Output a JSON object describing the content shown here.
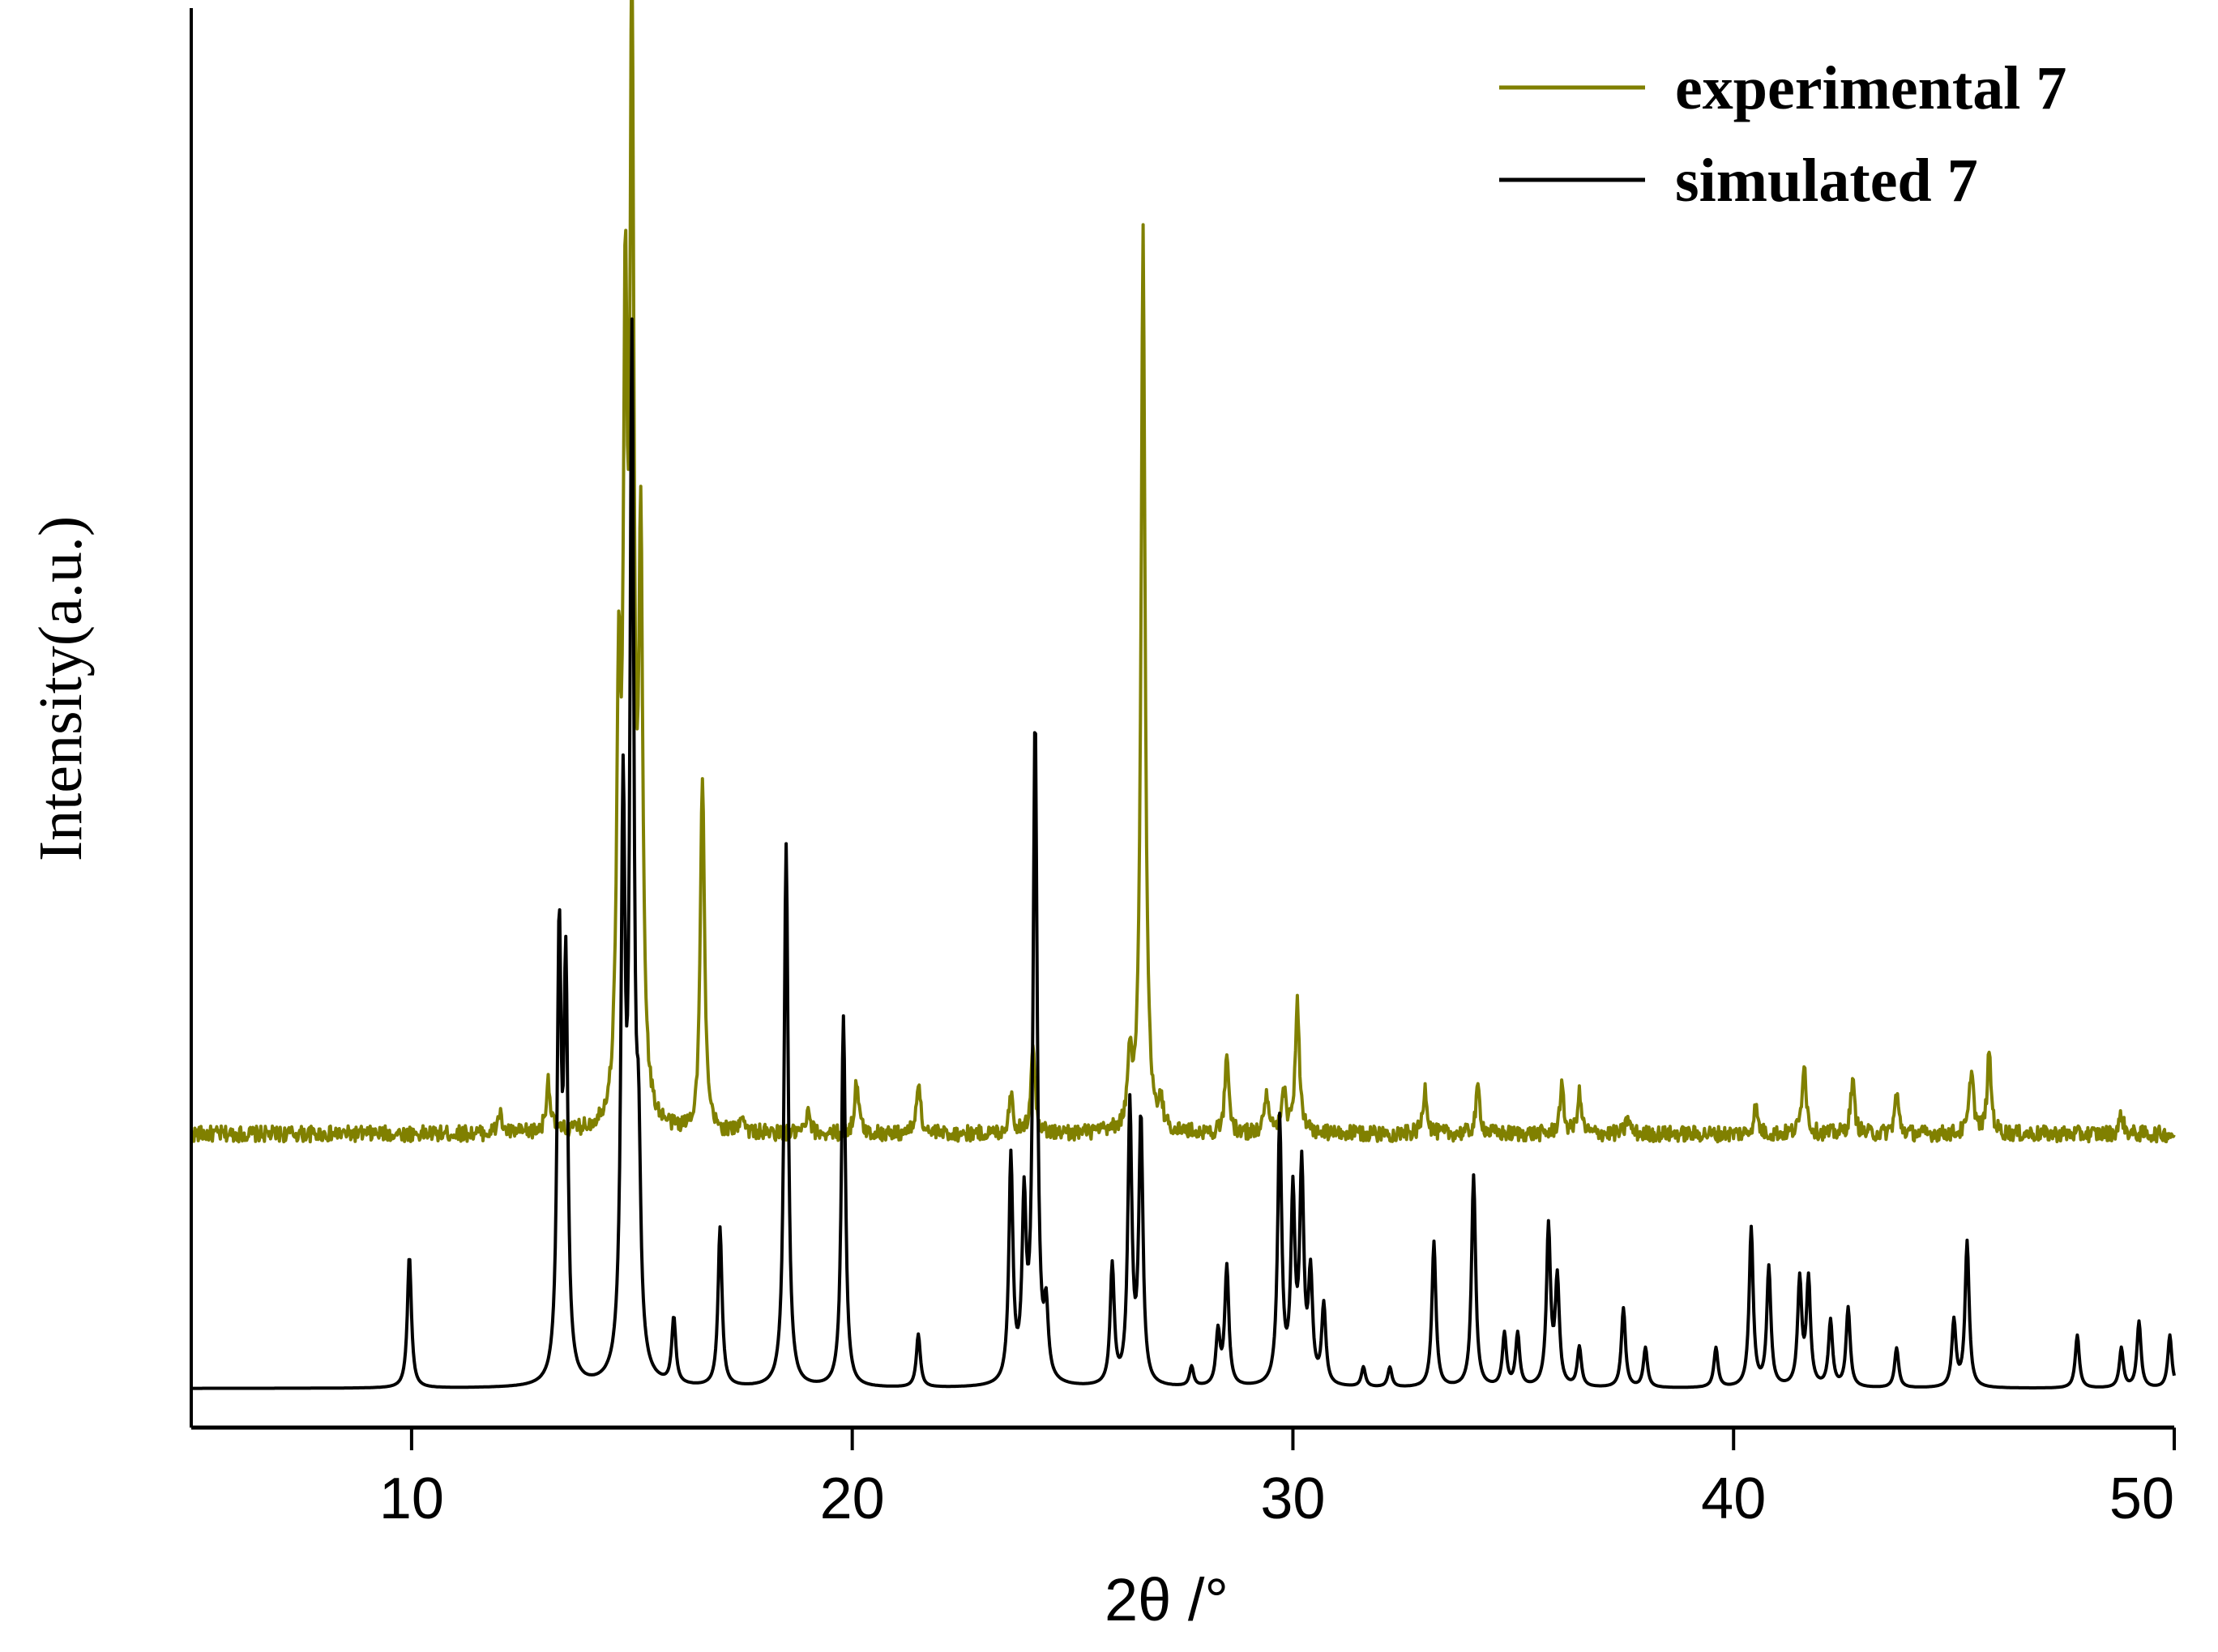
{
  "chart_data": {
    "type": "line",
    "title": "",
    "xlabel": "2θ /°",
    "ylabel": "Intensity(a.u.)",
    "xlim": [
      5,
      50
    ],
    "x_ticks": [
      10,
      20,
      30,
      40,
      50
    ],
    "y_ticks_shown": false,
    "grid": false,
    "legend_position": "top-right",
    "series": [
      {
        "name": "experimental 7",
        "color": "#808000",
        "baseline": 0.205,
        "noise": 0.006,
        "peaks": [
          [
            12.0,
            0.015
          ],
          [
            13.1,
            0.04
          ],
          [
            14.7,
            0.3
          ],
          [
            14.85,
            0.55
          ],
          [
            15.0,
            0.8
          ],
          [
            15.2,
            0.42
          ],
          [
            16.6,
            0.27
          ],
          [
            17.5,
            0.015
          ],
          [
            19.0,
            0.015
          ],
          [
            20.1,
            0.04
          ],
          [
            21.5,
            0.04
          ],
          [
            23.6,
            0.03
          ],
          [
            24.1,
            0.07
          ],
          [
            26.3,
            0.05
          ],
          [
            26.6,
            0.68
          ],
          [
            27.0,
            0.02
          ],
          [
            28.5,
            0.055
          ],
          [
            29.4,
            0.03
          ],
          [
            29.8,
            0.03
          ],
          [
            30.1,
            0.1
          ],
          [
            33.0,
            0.035
          ],
          [
            34.2,
            0.035
          ],
          [
            36.1,
            0.035
          ],
          [
            36.5,
            0.03
          ],
          [
            37.6,
            0.012
          ],
          [
            40.5,
            0.02
          ],
          [
            41.6,
            0.055
          ],
          [
            42.7,
            0.04
          ],
          [
            43.7,
            0.03
          ],
          [
            45.4,
            0.05
          ],
          [
            45.8,
            0.06
          ],
          [
            48.8,
            0.015
          ]
        ]
      },
      {
        "name": "simulated 7",
        "color": "#000000",
        "baseline": 0.013,
        "noise": 0.0,
        "peaks": [
          [
            9.95,
            0.1
          ],
          [
            13.35,
            0.33
          ],
          [
            13.5,
            0.3
          ],
          [
            14.8,
            0.42
          ],
          [
            15.0,
            0.76
          ],
          [
            15.15,
            0.14
          ],
          [
            15.95,
            0.05
          ],
          [
            17.0,
            0.12
          ],
          [
            18.5,
            0.41
          ],
          [
            19.8,
            0.28
          ],
          [
            21.5,
            0.04
          ],
          [
            23.6,
            0.17
          ],
          [
            23.9,
            0.13
          ],
          [
            24.15,
            0.5
          ],
          [
            24.4,
            0.05
          ],
          [
            25.9,
            0.09
          ],
          [
            26.3,
            0.21
          ],
          [
            26.55,
            0.2
          ],
          [
            27.7,
            0.015
          ],
          [
            28.3,
            0.04
          ],
          [
            28.5,
            0.09
          ],
          [
            29.7,
            0.2
          ],
          [
            30.0,
            0.14
          ],
          [
            30.2,
            0.16
          ],
          [
            30.4,
            0.08
          ],
          [
            30.7,
            0.06
          ],
          [
            31.6,
            0.015
          ],
          [
            32.2,
            0.015
          ],
          [
            33.2,
            0.11
          ],
          [
            34.1,
            0.16
          ],
          [
            34.8,
            0.04
          ],
          [
            35.1,
            0.04
          ],
          [
            35.8,
            0.12
          ],
          [
            36.0,
            0.08
          ],
          [
            36.5,
            0.03
          ],
          [
            37.5,
            0.06
          ],
          [
            38.0,
            0.03
          ],
          [
            39.6,
            0.03
          ],
          [
            40.4,
            0.12
          ],
          [
            40.8,
            0.09
          ],
          [
            41.5,
            0.08
          ],
          [
            41.7,
            0.08
          ],
          [
            42.2,
            0.05
          ],
          [
            42.6,
            0.06
          ],
          [
            43.7,
            0.03
          ],
          [
            45.0,
            0.05
          ],
          [
            45.3,
            0.11
          ],
          [
            47.8,
            0.04
          ],
          [
            48.8,
            0.03
          ],
          [
            49.2,
            0.05
          ],
          [
            49.9,
            0.04
          ]
        ]
      }
    ]
  }
}
